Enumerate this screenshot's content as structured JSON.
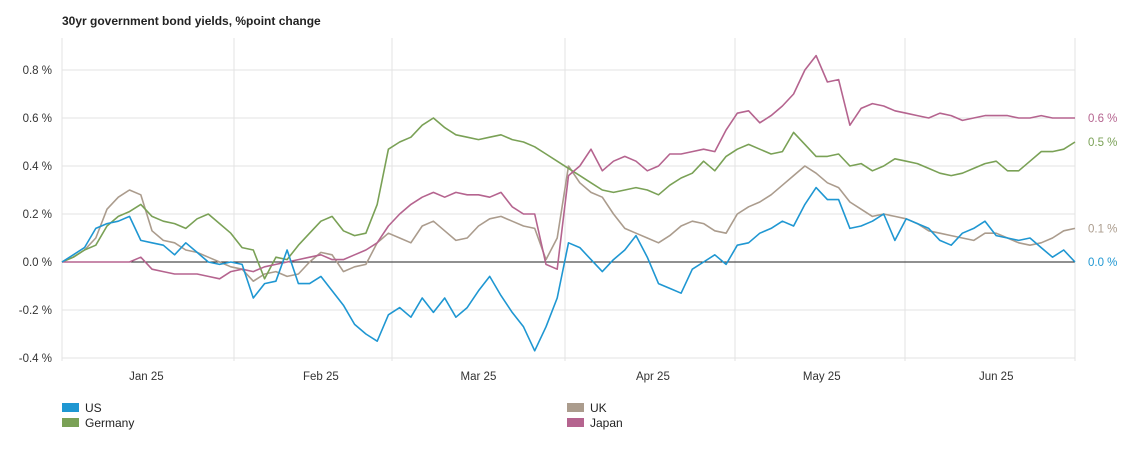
{
  "chart_data": {
    "type": "line",
    "title": "30yr government bond yields, %point change",
    "xlabel": "",
    "ylabel": "",
    "ylim": [
      -0.4,
      0.9
    ],
    "y_ticks": [
      "0.8 %",
      "0.6 %",
      "0.4 %",
      "0.2 %",
      "0.0 %",
      "-0.2 %",
      "-0.4 %"
    ],
    "y_tick_values": [
      0.8,
      0.6,
      0.4,
      0.2,
      0.0,
      -0.2,
      -0.4
    ],
    "x_domain": [
      0,
      180
    ],
    "x_ticks": [
      {
        "label": "Jan 25",
        "x": 15
      },
      {
        "label": "Feb 25",
        "x": 46
      },
      {
        "label": "Mar 25",
        "x": 74
      },
      {
        "label": "Apr 25",
        "x": 105
      },
      {
        "label": "May 25",
        "x": 135
      },
      {
        "label": "Jun 25",
        "x": 166
      }
    ],
    "grid": true,
    "legend_position": "bottom",
    "series": [
      {
        "name": "US",
        "color": "#1f97d2",
        "end_label": "0.0 %",
        "x": [
          0,
          2,
          4,
          6,
          8,
          10,
          12,
          14,
          16,
          18,
          20,
          22,
          24,
          26,
          28,
          30,
          32,
          34,
          36,
          38,
          40,
          42,
          44,
          46,
          48,
          50,
          52,
          54,
          56,
          58,
          60,
          62,
          64,
          66,
          68,
          70,
          72,
          74,
          76,
          78,
          80,
          82,
          84,
          86,
          88,
          90,
          92,
          94,
          96,
          98,
          100,
          102,
          104,
          106,
          108,
          110,
          112,
          114,
          116,
          118,
          120,
          122,
          124,
          126,
          128,
          130,
          132,
          134,
          136,
          138,
          140,
          142,
          144,
          146,
          148,
          150,
          152,
          154,
          156,
          158,
          160,
          162,
          164,
          166,
          168,
          170,
          172,
          174,
          176,
          178,
          180
        ],
        "values": [
          0.0,
          0.03,
          0.06,
          0.14,
          0.16,
          0.17,
          0.19,
          0.09,
          0.08,
          0.07,
          0.03,
          0.08,
          0.04,
          0.0,
          -0.01,
          0.0,
          -0.01,
          -0.15,
          -0.09,
          -0.08,
          0.05,
          -0.09,
          -0.09,
          -0.06,
          -0.12,
          -0.18,
          -0.26,
          -0.3,
          -0.33,
          -0.22,
          -0.19,
          -0.23,
          -0.15,
          -0.21,
          -0.15,
          -0.23,
          -0.19,
          -0.12,
          -0.06,
          -0.14,
          -0.21,
          -0.27,
          -0.37,
          -0.27,
          -0.15,
          0.08,
          0.06,
          0.01,
          -0.04,
          0.01,
          0.05,
          0.11,
          0.02,
          -0.09,
          -0.11,
          -0.13,
          -0.03,
          0.0,
          0.03,
          -0.01,
          0.07,
          0.08,
          0.12,
          0.14,
          0.17,
          0.15,
          0.24,
          0.31,
          0.26,
          0.26,
          0.14,
          0.15,
          0.17,
          0.2,
          0.09,
          0.18,
          0.16,
          0.14,
          0.09,
          0.07,
          0.12,
          0.14,
          0.17,
          0.11,
          0.1,
          0.09,
          0.1,
          0.06,
          0.02,
          0.05,
          0.0
        ]
      },
      {
        "name": "Germany",
        "color": "#7aa156",
        "end_label": "0.5 %",
        "x": [
          0,
          2,
          4,
          6,
          8,
          10,
          12,
          14,
          16,
          18,
          20,
          22,
          24,
          26,
          28,
          30,
          32,
          34,
          36,
          38,
          40,
          42,
          44,
          46,
          48,
          50,
          52,
          54,
          56,
          58,
          60,
          62,
          64,
          66,
          68,
          70,
          72,
          74,
          76,
          78,
          80,
          82,
          84,
          86,
          88,
          90,
          92,
          94,
          96,
          98,
          100,
          102,
          104,
          106,
          108,
          110,
          112,
          114,
          116,
          118,
          120,
          122,
          124,
          126,
          128,
          130,
          132,
          134,
          136,
          138,
          140,
          142,
          144,
          146,
          148,
          150,
          152,
          154,
          156,
          158,
          160,
          162,
          164,
          166,
          168,
          170,
          172,
          174,
          176,
          178,
          180
        ],
        "values": [
          0.0,
          0.02,
          0.05,
          0.07,
          0.15,
          0.19,
          0.21,
          0.24,
          0.19,
          0.17,
          0.16,
          0.14,
          0.18,
          0.2,
          0.16,
          0.12,
          0.06,
          0.05,
          -0.07,
          0.02,
          0.01,
          0.07,
          0.12,
          0.17,
          0.19,
          0.13,
          0.11,
          0.12,
          0.24,
          0.47,
          0.5,
          0.52,
          0.57,
          0.6,
          0.56,
          0.53,
          0.52,
          0.51,
          0.52,
          0.53,
          0.51,
          0.5,
          0.48,
          0.45,
          0.42,
          0.39,
          0.36,
          0.33,
          0.3,
          0.29,
          0.3,
          0.31,
          0.3,
          0.28,
          0.32,
          0.35,
          0.37,
          0.42,
          0.38,
          0.44,
          0.47,
          0.49,
          0.47,
          0.45,
          0.46,
          0.54,
          0.49,
          0.44,
          0.44,
          0.45,
          0.4,
          0.41,
          0.38,
          0.4,
          0.43,
          0.42,
          0.41,
          0.39,
          0.37,
          0.36,
          0.37,
          0.39,
          0.41,
          0.42,
          0.38,
          0.38,
          0.42,
          0.46,
          0.46,
          0.47,
          0.5
        ]
      },
      {
        "name": "UK",
        "color": "#ab9c8d",
        "end_label": "0.1 %",
        "x": [
          0,
          2,
          4,
          6,
          8,
          10,
          12,
          14,
          16,
          18,
          20,
          22,
          24,
          26,
          28,
          30,
          32,
          34,
          36,
          38,
          40,
          42,
          44,
          46,
          48,
          50,
          52,
          54,
          56,
          58,
          60,
          62,
          64,
          66,
          68,
          70,
          72,
          74,
          76,
          78,
          80,
          82,
          84,
          86,
          88,
          90,
          92,
          94,
          96,
          98,
          100,
          102,
          104,
          106,
          108,
          110,
          112,
          114,
          116,
          118,
          120,
          122,
          124,
          126,
          128,
          130,
          132,
          134,
          136,
          138,
          140,
          142,
          144,
          146,
          148,
          150,
          152,
          154,
          156,
          158,
          160,
          162,
          164,
          166,
          168,
          170,
          172,
          174,
          176,
          178,
          180
        ],
        "values": [
          0.0,
          0.02,
          0.05,
          0.1,
          0.22,
          0.27,
          0.3,
          0.28,
          0.13,
          0.09,
          0.08,
          0.05,
          0.04,
          0.02,
          0.0,
          -0.02,
          -0.03,
          -0.08,
          -0.05,
          -0.04,
          -0.06,
          -0.05,
          0.0,
          0.04,
          0.03,
          -0.04,
          -0.02,
          -0.01,
          0.08,
          0.12,
          0.1,
          0.08,
          0.15,
          0.17,
          0.13,
          0.09,
          0.1,
          0.15,
          0.18,
          0.19,
          0.17,
          0.15,
          0.14,
          0.01,
          0.1,
          0.4,
          0.33,
          0.29,
          0.27,
          0.2,
          0.14,
          0.12,
          0.1,
          0.08,
          0.11,
          0.15,
          0.17,
          0.16,
          0.13,
          0.12,
          0.2,
          0.23,
          0.25,
          0.28,
          0.32,
          0.36,
          0.4,
          0.37,
          0.33,
          0.31,
          0.25,
          0.22,
          0.19,
          0.2,
          0.19,
          0.18,
          0.16,
          0.13,
          0.12,
          0.11,
          0.1,
          0.09,
          0.12,
          0.12,
          0.1,
          0.08,
          0.07,
          0.08,
          0.1,
          0.13,
          0.14
        ]
      },
      {
        "name": "Japan",
        "color": "#b5648f",
        "end_label": "0.6 %",
        "x": [
          0,
          2,
          4,
          6,
          8,
          10,
          12,
          14,
          16,
          18,
          20,
          22,
          24,
          26,
          28,
          30,
          32,
          34,
          36,
          38,
          40,
          42,
          44,
          46,
          48,
          50,
          52,
          54,
          56,
          58,
          60,
          62,
          64,
          66,
          68,
          70,
          72,
          74,
          76,
          78,
          80,
          82,
          84,
          86,
          88,
          90,
          92,
          94,
          96,
          98,
          100,
          102,
          104,
          106,
          108,
          110,
          112,
          114,
          116,
          118,
          120,
          122,
          124,
          126,
          128,
          130,
          132,
          134,
          136,
          138,
          140,
          142,
          144,
          146,
          148,
          150,
          152,
          154,
          156,
          158,
          160,
          162,
          164,
          166,
          168,
          170,
          172,
          174,
          176,
          178,
          180
        ],
        "values": [
          0.0,
          0.0,
          0.0,
          0.0,
          0.0,
          0.0,
          0.0,
          0.02,
          -0.03,
          -0.04,
          -0.05,
          -0.05,
          -0.05,
          -0.06,
          -0.07,
          -0.04,
          -0.03,
          -0.04,
          -0.02,
          -0.01,
          0.0,
          0.01,
          0.02,
          0.03,
          0.01,
          0.01,
          0.03,
          0.05,
          0.08,
          0.15,
          0.2,
          0.24,
          0.27,
          0.29,
          0.27,
          0.29,
          0.28,
          0.28,
          0.27,
          0.29,
          0.23,
          0.2,
          0.2,
          -0.01,
          -0.03,
          0.36,
          0.4,
          0.47,
          0.38,
          0.42,
          0.44,
          0.42,
          0.38,
          0.4,
          0.45,
          0.45,
          0.46,
          0.47,
          0.46,
          0.55,
          0.62,
          0.63,
          0.58,
          0.61,
          0.65,
          0.7,
          0.8,
          0.86,
          0.75,
          0.76,
          0.57,
          0.64,
          0.66,
          0.65,
          0.63,
          0.62,
          0.61,
          0.6,
          0.62,
          0.61,
          0.59,
          0.6,
          0.61,
          0.61,
          0.61,
          0.6,
          0.6,
          0.61,
          0.6,
          0.6,
          0.6
        ]
      }
    ]
  }
}
